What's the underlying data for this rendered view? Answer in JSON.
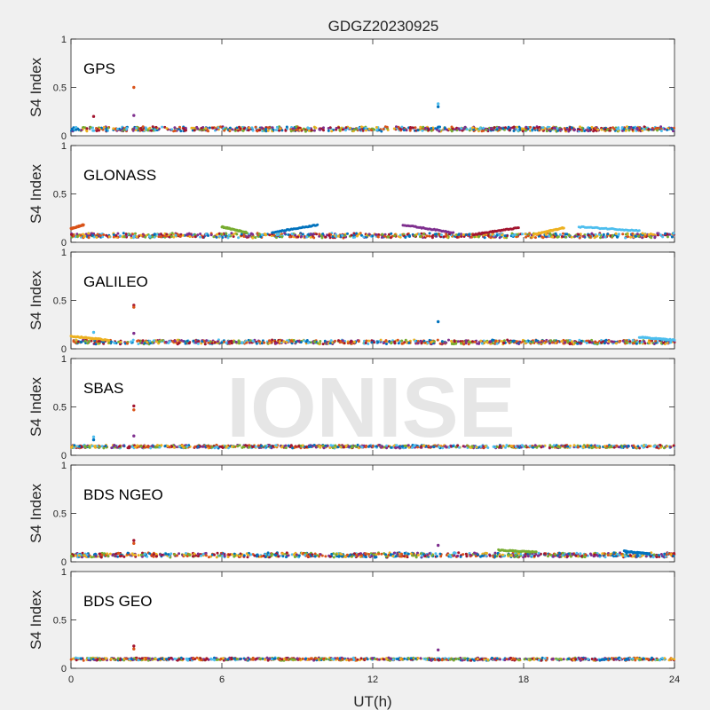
{
  "chart_data": {
    "type": "scatter",
    "title": "GDGZ20230925",
    "xlabel": "UT(h)",
    "ylabel": "S4 Index",
    "xlim": [
      0,
      24
    ],
    "ylim": [
      0,
      1
    ],
    "x_ticks": [
      "0",
      "6",
      "12",
      "18",
      "24"
    ],
    "y_ticks": [
      "0",
      "0.5",
      "1"
    ],
    "watermark": "IONISE",
    "series_colors": [
      "#0072BD",
      "#D95319",
      "#EDB120",
      "#7E2F8E",
      "#77AC30",
      "#4DBEEE",
      "#A2142F"
    ],
    "panels": [
      {
        "label": "GPS",
        "baseline": 0.07,
        "noise": 0.02,
        "spikes": [
          {
            "x": 0.9,
            "y": 0.2
          },
          {
            "x": 2.5,
            "y": 0.5
          },
          {
            "x": 2.5,
            "y": 0.21
          },
          {
            "x": 14.6,
            "y": 0.33
          },
          {
            "x": 14.6,
            "y": 0.3
          }
        ]
      },
      {
        "label": "GLONASS",
        "baseline": 0.07,
        "noise": 0.02,
        "arcs": [
          {
            "x0": 0,
            "x1": 0.5,
            "y0": 0.14,
            "y1": 0.18
          },
          {
            "x0": 6.0,
            "x1": 7.0,
            "y0": 0.16,
            "y1": 0.1
          },
          {
            "x0": 8.0,
            "x1": 9.8,
            "y0": 0.1,
            "y1": 0.18
          },
          {
            "x0": 13.2,
            "x1": 15.2,
            "y0": 0.18,
            "y1": 0.1
          },
          {
            "x0": 16.0,
            "x1": 17.8,
            "y0": 0.08,
            "y1": 0.15
          },
          {
            "x0": 18.4,
            "x1": 19.6,
            "y0": 0.08,
            "y1": 0.15
          },
          {
            "x0": 20.2,
            "x1": 22.6,
            "y0": 0.16,
            "y1": 0.12
          }
        ],
        "spikes": []
      },
      {
        "label": "GALILEO",
        "baseline": 0.07,
        "noise": 0.018,
        "arcs": [
          {
            "x0": 0,
            "x1": 1.5,
            "y0": 0.13,
            "y1": 0.09
          },
          {
            "x0": 22.6,
            "x1": 24,
            "y0": 0.12,
            "y1": 0.09
          }
        ],
        "spikes": [
          {
            "x": 2.5,
            "y": 0.45
          },
          {
            "x": 2.5,
            "y": 0.43
          },
          {
            "x": 2.5,
            "y": 0.16
          },
          {
            "x": 0.9,
            "y": 0.17
          },
          {
            "x": 14.6,
            "y": 0.28
          }
        ]
      },
      {
        "label": "SBAS",
        "baseline": 0.09,
        "noise": 0.012,
        "spikes": [
          {
            "x": 2.5,
            "y": 0.51
          },
          {
            "x": 2.5,
            "y": 0.47
          },
          {
            "x": 2.5,
            "y": 0.2
          },
          {
            "x": 0.9,
            "y": 0.19
          },
          {
            "x": 0.9,
            "y": 0.16
          }
        ]
      },
      {
        "label": "BDS NGEO",
        "baseline": 0.07,
        "noise": 0.02,
        "arcs": [
          {
            "x0": 17.0,
            "x1": 18.5,
            "y0": 0.12,
            "y1": 0.1
          },
          {
            "x0": 22.0,
            "x1": 23.0,
            "y0": 0.11,
            "y1": 0.08
          }
        ],
        "spikes": [
          {
            "x": 2.5,
            "y": 0.22
          },
          {
            "x": 2.5,
            "y": 0.19
          },
          {
            "x": 14.6,
            "y": 0.17
          }
        ]
      },
      {
        "label": "BDS GEO",
        "baseline": 0.095,
        "noise": 0.01,
        "spikes": [
          {
            "x": 2.5,
            "y": 0.23
          },
          {
            "x": 2.5,
            "y": 0.2
          },
          {
            "x": 14.6,
            "y": 0.19
          }
        ]
      }
    ]
  }
}
